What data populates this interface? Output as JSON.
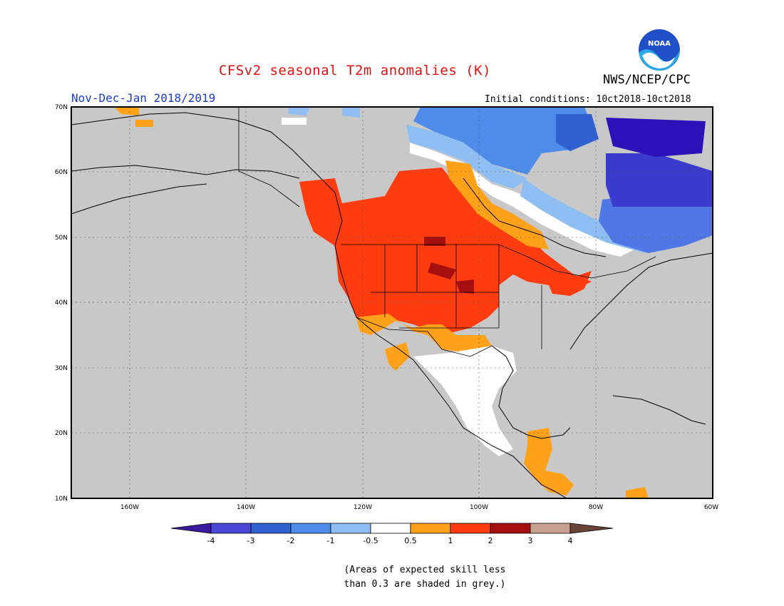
{
  "header": {
    "title": "CFSv2 seasonal T2m anomalies (K)",
    "agency": "NWS/NCEP/CPC",
    "logo_text": "NOAA",
    "period": "Nov-Dec-Jan 2018/2019",
    "initial_conditions": "Initial conditions: 10ct2018-10ct2018"
  },
  "map": {
    "lat_labels": [
      "70N",
      "60N",
      "50N",
      "40N",
      "30N",
      "20N",
      "10N"
    ],
    "lon_labels": [
      "160W",
      "140W",
      "120W",
      "100W",
      "80W",
      "60W"
    ],
    "land_color": "#c8c8c8",
    "colors": {
      "very_cold": "#2a12b8",
      "cold": "#4f78e6",
      "cool": "#8fb8f0",
      "neutral": "#ffffff",
      "warm": "#ffa21a",
      "hot": "#ff3c10",
      "very_hot": "#a60f0f"
    }
  },
  "colorbar": {
    "labels": [
      "-4",
      "-3",
      "-2",
      "-1",
      "-0.5",
      "0.5",
      "1",
      "2",
      "3",
      "4"
    ],
    "colors": [
      "#3a1a9e",
      "#4a46d6",
      "#2f62d0",
      "#4f8cea",
      "#8fbef2",
      "#ffffff",
      "#ffa21a",
      "#ff3c10",
      "#a60f0f",
      "#c8a090",
      "#6a4436"
    ]
  },
  "footnote": {
    "line1": "(Areas of expected skill less",
    "line2": "than 0.3 are shaded in grey.)"
  }
}
